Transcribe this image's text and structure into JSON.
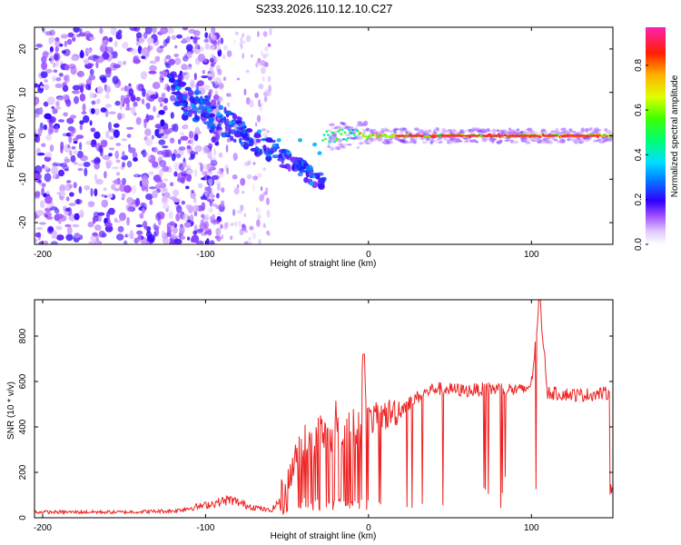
{
  "title": "S233.2026.110.12.10.C27",
  "chart_data": [
    {
      "type": "heatmap",
      "xlabel": "Height of straight line (km)",
      "ylabel": "Frequency (Hz)",
      "xlim": [
        -205,
        150
      ],
      "ylim": [
        -25,
        25
      ],
      "xticks": [
        -200,
        -100,
        0,
        100
      ],
      "yticks": [
        -20,
        -10,
        0,
        10,
        20
      ],
      "colorbar": {
        "label": "Normalized spectral amplitude",
        "range": [
          0,
          0.97
        ],
        "ticks": [
          0.0,
          0.2,
          0.4,
          0.6,
          0.8
        ]
      },
      "description_series": [
        {
          "name": "noise-region",
          "x_range": [
            -205,
            -60
          ],
          "amplitude": 0.15
        },
        {
          "name": "tail",
          "x": [
            -120,
            -100,
            -80,
            -60,
            -40,
            -30
          ],
          "y": [
            10,
            7,
            5,
            0,
            -5,
            -10
          ],
          "amplitude": 0.3
        },
        {
          "name": "carrier",
          "x_range": [
            -20,
            150
          ],
          "y": 0,
          "amplitude": 0.95
        }
      ]
    },
    {
      "type": "line",
      "xlabel": "Height of straight line (km)",
      "ylabel": "SNR (10 * v/v)",
      "xlim": [
        -205,
        150
      ],
      "ylim": [
        0,
        960
      ],
      "xticks": [
        -200,
        -100,
        0,
        100
      ],
      "yticks": [
        0,
        200,
        400,
        600,
        800
      ],
      "series": [
        {
          "name": "SNR",
          "color": "#ee2222",
          "x": [
            -205,
            -150,
            -120,
            -100,
            -85,
            -75,
            -60,
            -50,
            -45,
            -40,
            -35,
            -30,
            -25,
            -20,
            -15,
            -10,
            -5,
            -3,
            0,
            10,
            20,
            30,
            40,
            60,
            80,
            95,
            100,
            105,
            110,
            130,
            150
          ],
          "y": [
            25,
            25,
            30,
            55,
            80,
            55,
            30,
            110,
            280,
            340,
            300,
            420,
            330,
            430,
            380,
            420,
            400,
            720,
            430,
            450,
            480,
            530,
            570,
            560,
            570,
            560,
            590,
            960,
            550,
            540,
            550
          ]
        }
      ]
    }
  ]
}
